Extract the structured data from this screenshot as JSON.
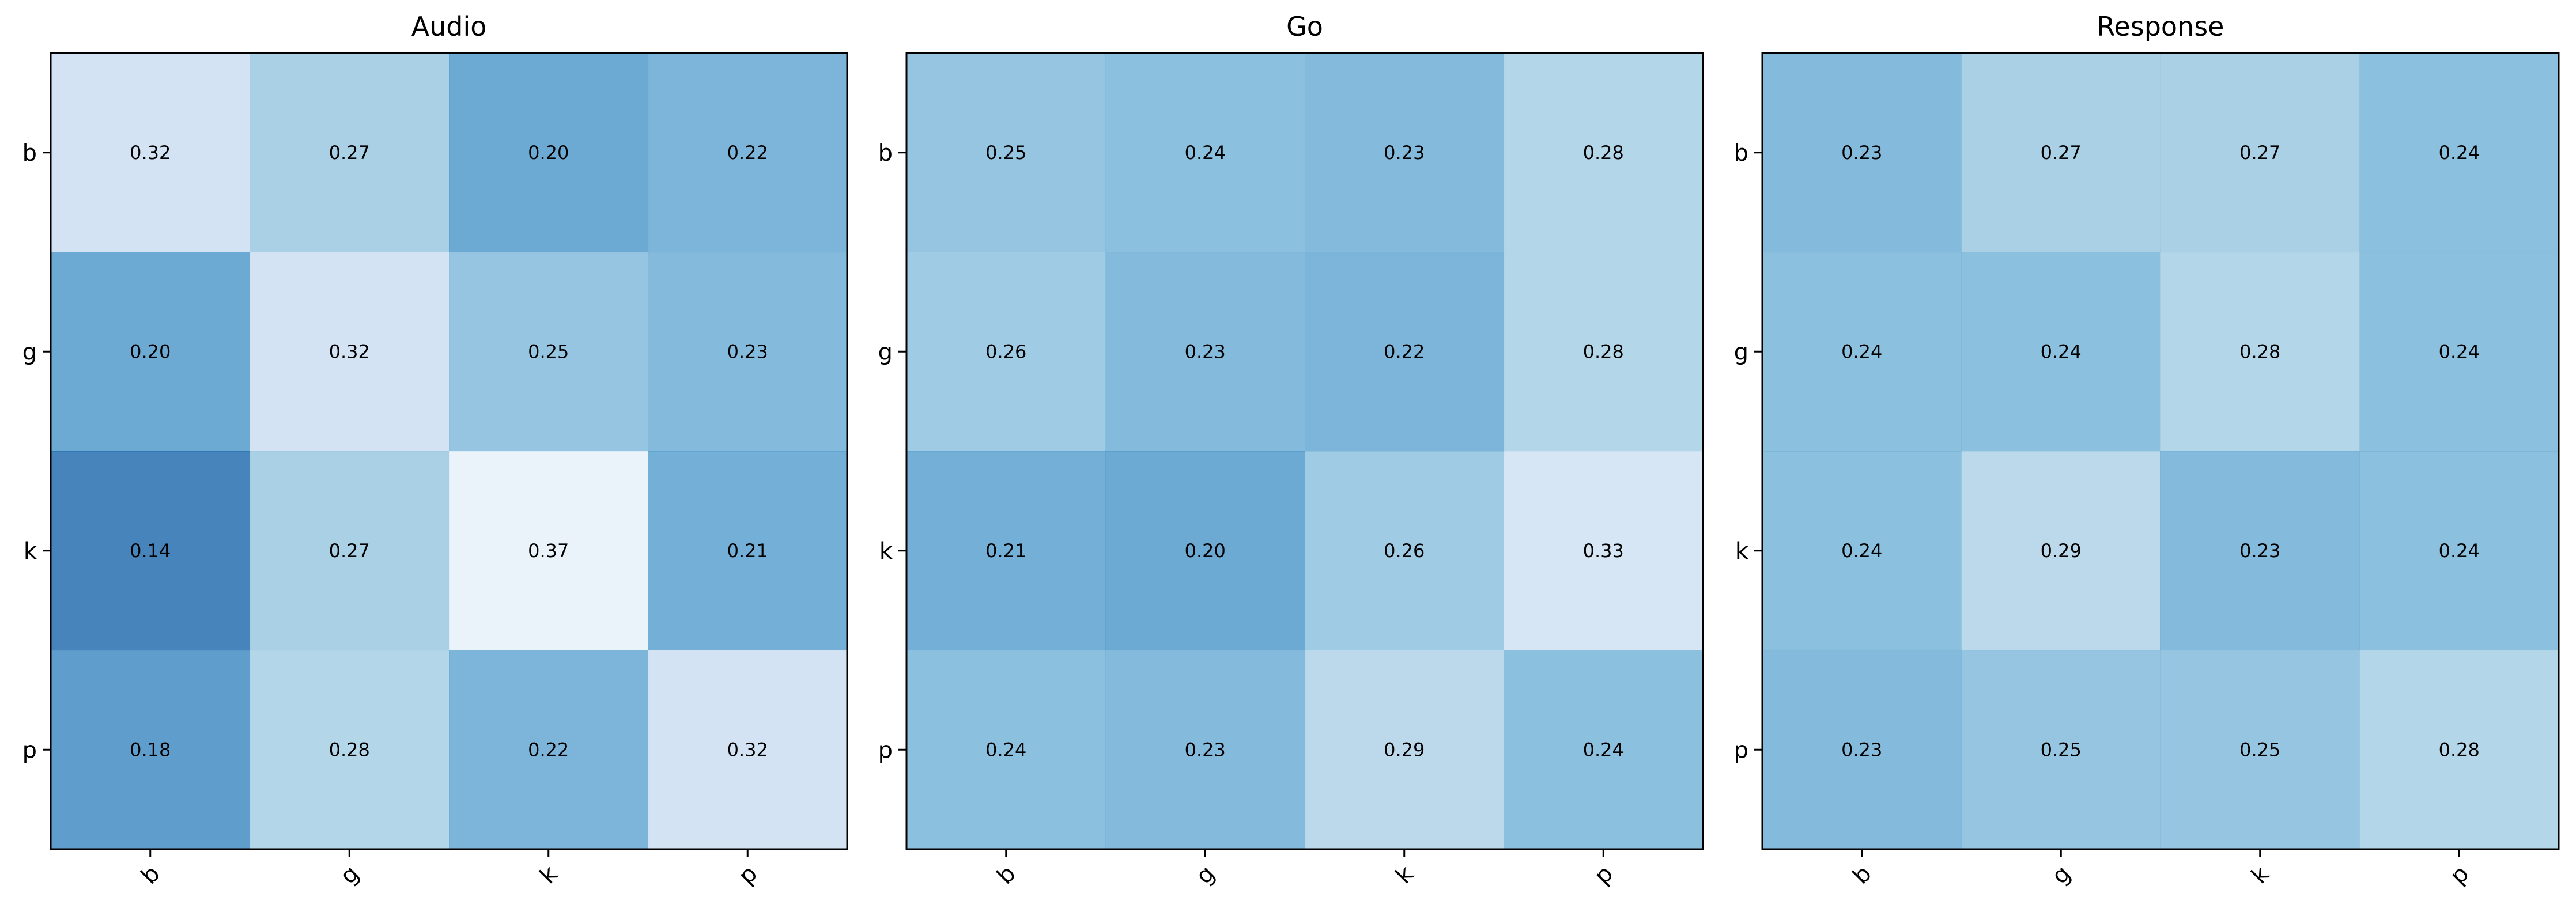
{
  "chart_data": [
    {
      "type": "heatmap",
      "title": "Audio",
      "row_labels": [
        "b",
        "g",
        "k",
        "p"
      ],
      "col_labels": [
        "b",
        "g",
        "k",
        "p"
      ],
      "values": [
        [
          0.32,
          0.27,
          0.2,
          0.22
        ],
        [
          0.2,
          0.32,
          0.25,
          0.23
        ],
        [
          0.14,
          0.27,
          0.37,
          0.21
        ],
        [
          0.18,
          0.28,
          0.22,
          0.32
        ]
      ],
      "value_labels": [
        [
          "0.32",
          "0.27",
          "0.20",
          "0.22"
        ],
        [
          "0.20",
          "0.32",
          "0.25",
          "0.23"
        ],
        [
          "0.14",
          "0.27",
          "0.37",
          "0.21"
        ],
        [
          "0.18",
          "0.28",
          "0.22",
          "0.32"
        ]
      ],
      "colormap": "Blues_r",
      "color_range": [
        0.08,
        0.4
      ],
      "colorbar": false,
      "x_tick_rotation": -45
    },
    {
      "type": "heatmap",
      "title": "Go",
      "row_labels": [
        "b",
        "g",
        "k",
        "p"
      ],
      "col_labels": [
        "b",
        "g",
        "k",
        "p"
      ],
      "values": [
        [
          0.25,
          0.24,
          0.23,
          0.28
        ],
        [
          0.26,
          0.23,
          0.22,
          0.28
        ],
        [
          0.21,
          0.2,
          0.26,
          0.33
        ],
        [
          0.24,
          0.23,
          0.29,
          0.24
        ]
      ],
      "value_labels": [
        [
          "0.25",
          "0.24",
          "0.23",
          "0.28"
        ],
        [
          "0.26",
          "0.23",
          "0.22",
          "0.28"
        ],
        [
          "0.21",
          "0.20",
          "0.26",
          "0.33"
        ],
        [
          "0.24",
          "0.23",
          "0.29",
          "0.24"
        ]
      ],
      "colormap": "Blues_r",
      "color_range": [
        0.08,
        0.4
      ],
      "colorbar": false,
      "x_tick_rotation": -45
    },
    {
      "type": "heatmap",
      "title": "Response",
      "row_labels": [
        "b",
        "g",
        "k",
        "p"
      ],
      "col_labels": [
        "b",
        "g",
        "k",
        "p"
      ],
      "values": [
        [
          0.23,
          0.27,
          0.27,
          0.24
        ],
        [
          0.24,
          0.24,
          0.28,
          0.24
        ],
        [
          0.24,
          0.29,
          0.23,
          0.24
        ],
        [
          0.23,
          0.25,
          0.25,
          0.28
        ]
      ],
      "value_labels": [
        [
          "0.23",
          "0.27",
          "0.27",
          "0.24"
        ],
        [
          "0.24",
          "0.24",
          "0.28",
          "0.24"
        ],
        [
          "0.24",
          "0.29",
          "0.23",
          "0.24"
        ],
        [
          "0.23",
          "0.25",
          "0.25",
          "0.28"
        ]
      ],
      "colormap": "Blues_r",
      "color_range": [
        0.08,
        0.4
      ],
      "colorbar": false,
      "x_tick_rotation": -45
    }
  ],
  "colors": {
    "darkest_cell": "#3a87be",
    "lightest_cell": "#e8f0f6",
    "frame": "#000000",
    "background": "#ffffff"
  }
}
